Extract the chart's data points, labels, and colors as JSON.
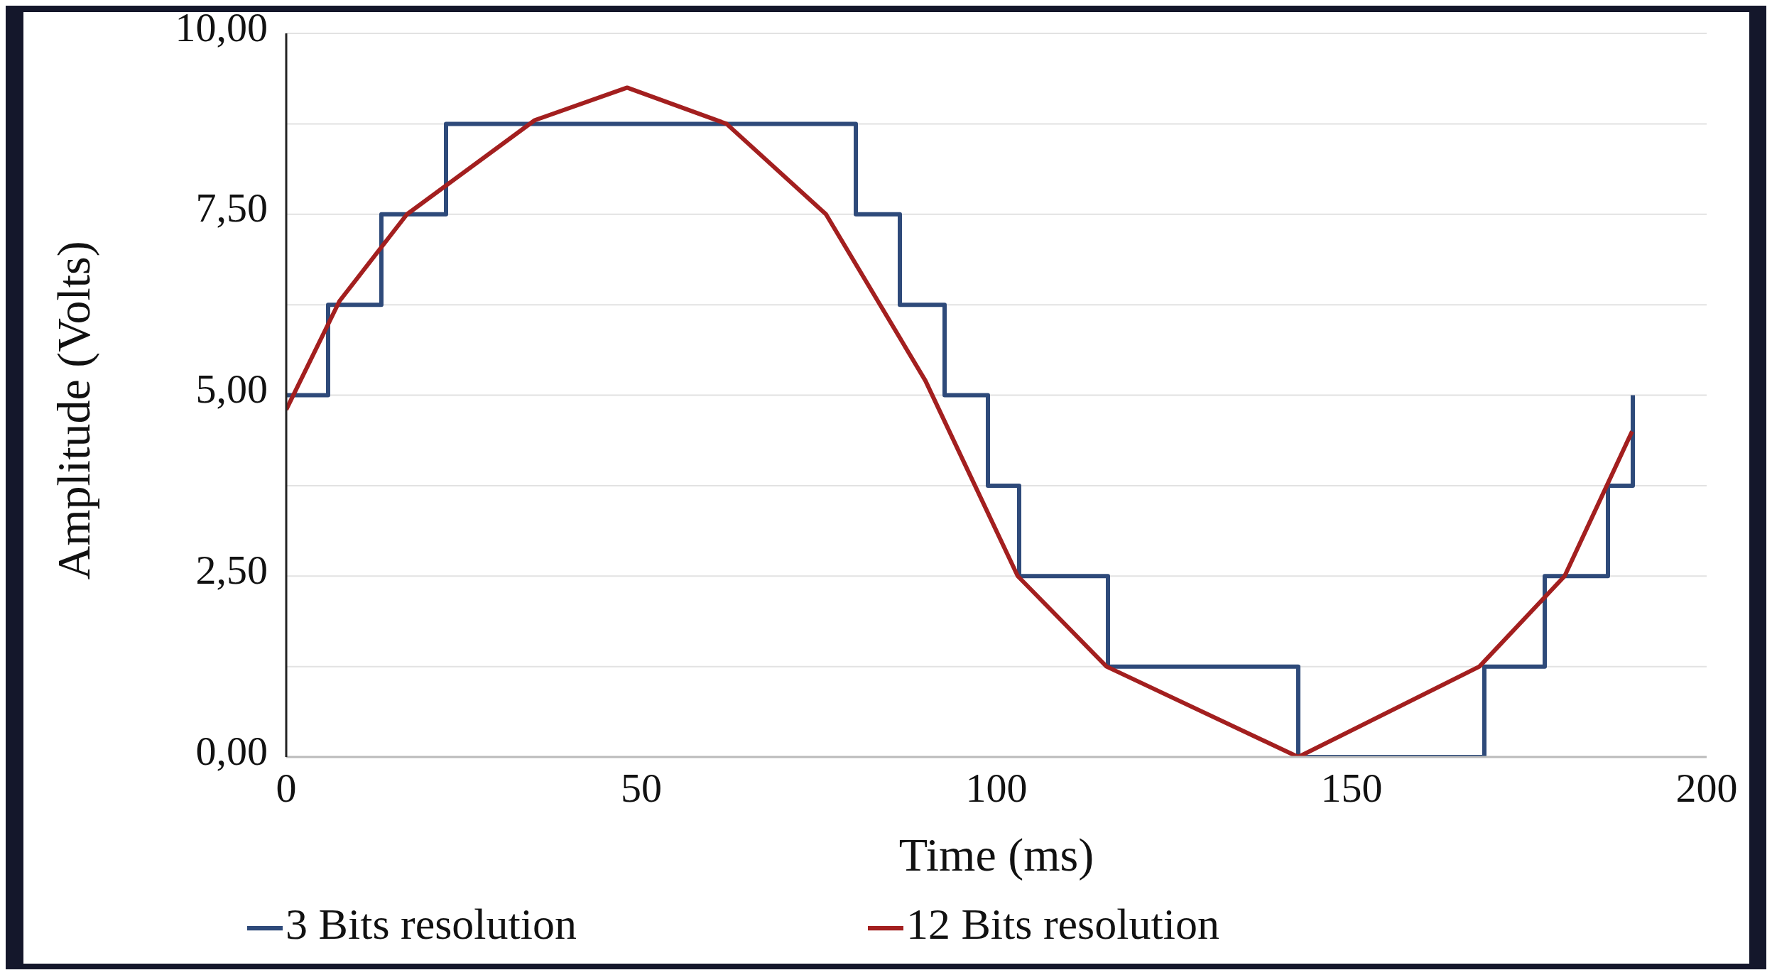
{
  "chart_data": {
    "type": "line",
    "xlabel": "Time (ms)",
    "ylabel": "Amplitude (Volts)",
    "xlim": [
      0,
      200
    ],
    "xticks": [
      0,
      50,
      100,
      150,
      200
    ],
    "ylim": [
      0,
      10
    ],
    "yticks": [
      {
        "value": 0,
        "label": "0,00"
      },
      {
        "value": 1.25,
        "label": null
      },
      {
        "value": 2.5,
        "label": "2,50"
      },
      {
        "value": 3.75,
        "label": null
      },
      {
        "value": 5,
        "label": "5,00"
      },
      {
        "value": 6.25,
        "label": null
      },
      {
        "value": 7.5,
        "label": "7,50"
      },
      {
        "value": 8.75,
        "label": null
      },
      {
        "value": 10,
        "label": "10,00"
      }
    ],
    "grid": "y",
    "legend": "bottom",
    "marker": "none",
    "line_style": "solid",
    "series": [
      {
        "name": "3 Bits resolution",
        "type": "step",
        "color": "#2e4a7a",
        "x": [
          0,
          5.9,
          13.4,
          22.5,
          80.2,
          86.4,
          92.7,
          98.8,
          103.2,
          115.7,
          142.5,
          168.7,
          177.2,
          186.1,
          189.6
        ],
        "values": [
          5,
          6.25,
          7.5,
          8.75,
          7.5,
          6.25,
          5,
          3.75,
          2.5,
          1.25,
          0,
          1.25,
          2.5,
          3.75,
          5
        ]
      },
      {
        "name": "12 Bits resolution",
        "type": "line",
        "color": "#a31f1f",
        "x": [
          0,
          7.5,
          17,
          35,
          48,
          62,
          76,
          90,
          103,
          115.5,
          142.5,
          168,
          180,
          189.5
        ],
        "values": [
          4.8,
          6.3,
          7.5,
          8.8,
          9.25,
          8.75,
          7.5,
          5.2,
          2.5,
          1.25,
          0,
          1.25,
          2.5,
          4.5
        ]
      }
    ]
  }
}
